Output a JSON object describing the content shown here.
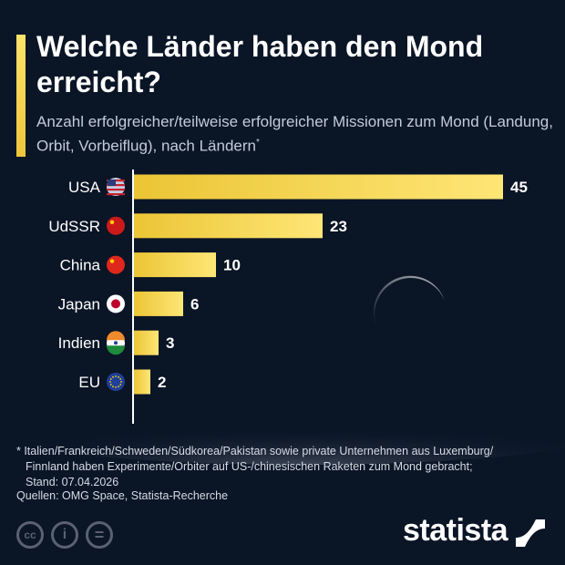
{
  "title": "Welche Länder haben den Mond erreicht?",
  "subtitle": "Anzahl erfolgreicher/teilweise erfolgreicher Missionen zum Mond (Landung, Orbit, Vorbeiflug), nach Ländern",
  "subtitle_mark": "*",
  "chart_data": {
    "type": "bar",
    "orientation": "horizontal",
    "categories": [
      "USA",
      "UdSSR",
      "China",
      "Japan",
      "Indien",
      "EU"
    ],
    "values": [
      45,
      23,
      10,
      6,
      3,
      2
    ],
    "flags": [
      "us-flag-icon",
      "ussr-flag-icon",
      "china-flag-icon",
      "japan-flag-icon",
      "india-flag-icon",
      "eu-flag-icon"
    ],
    "bar_color": "#f5d24a",
    "xlim": [
      0,
      45
    ],
    "grid": false
  },
  "notes": [
    "* Italien/Frankreich/Schweden/Südkorea/Pakistan sowie private Unternehmen aus Luxemburg/",
    "Finnland haben Experimente/Orbiter auf US-/chinesischen Raketen zum Mond gebracht;",
    "Stand: 07.04.2026"
  ],
  "source": "Quellen: OMG Space, Statista-Recherche",
  "license": {
    "cc": "cc",
    "by": "i",
    "nd": "="
  },
  "logo": "statista"
}
